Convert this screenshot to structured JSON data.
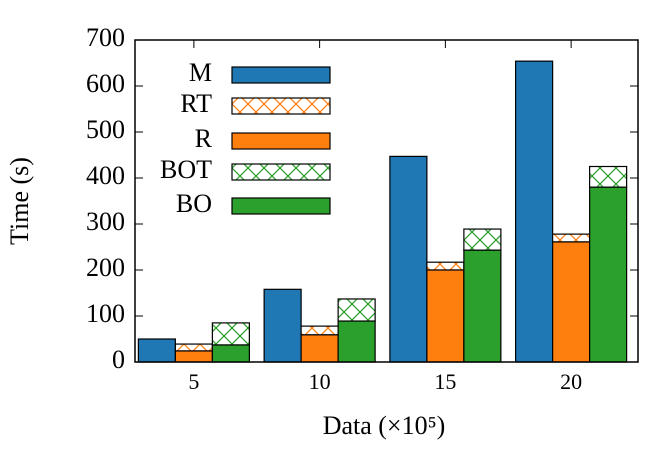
{
  "chart_data": {
    "type": "bar",
    "xlabel": "Data (×10⁵)",
    "ylabel": "Time (s)",
    "categories": [
      "5",
      "10",
      "15",
      "20"
    ],
    "series": [
      {
        "name": "M",
        "color": "#1f77b4",
        "values": [
          50,
          158,
          447,
          654
        ]
      },
      {
        "name": "RT",
        "color": "#ff7f0e",
        "hatch": true,
        "stack_on": "R",
        "values": [
          15,
          19,
          17,
          17
        ]
      },
      {
        "name": "R",
        "color": "#ff7f0e",
        "values": [
          24,
          59,
          200,
          261
        ]
      },
      {
        "name": "BOT",
        "color": "#2ca02c",
        "hatch": true,
        "stack_on": "BO",
        "values": [
          48,
          48,
          46,
          45
        ]
      },
      {
        "name": "BO",
        "color": "#2ca02c",
        "values": [
          37,
          89,
          243,
          380
        ]
      }
    ],
    "ylim": [
      0,
      700
    ],
    "yticks": [
      0,
      100,
      200,
      300,
      400,
      500,
      600,
      700
    ],
    "legend": "upper-left"
  }
}
